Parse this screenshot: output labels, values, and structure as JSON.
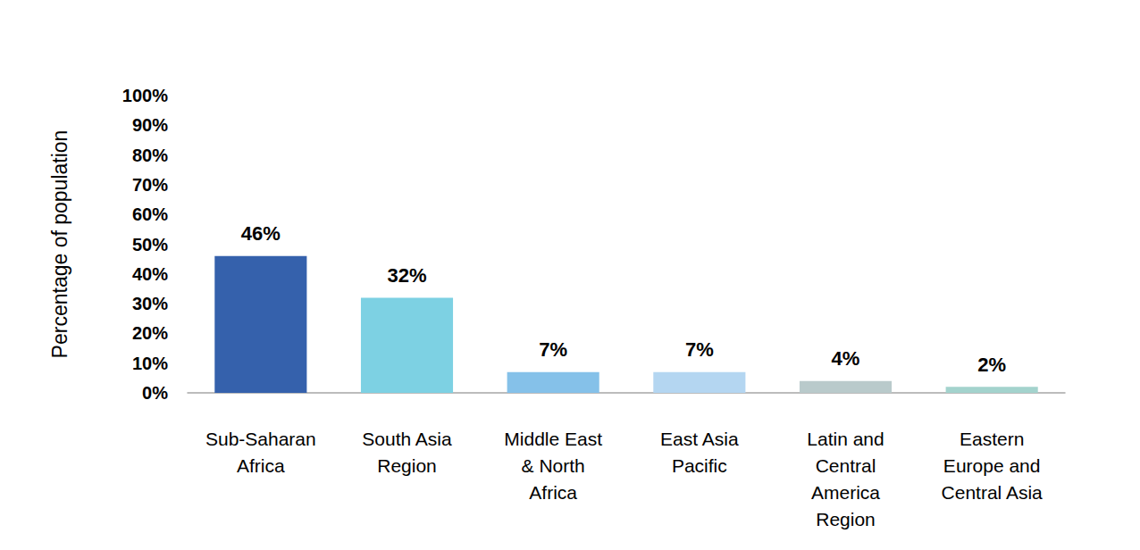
{
  "chart_data": {
    "type": "bar",
    "y_label": "Percentage of population",
    "categories": [
      "Sub-Saharan\nAfrica",
      "South Asia\nRegion",
      "Middle East\n& North\nAfrica",
      "East Asia\nPacific",
      "Latin and\nCentral\nAmerica\nRegion",
      "Eastern\nEurope and\nCentral Asia"
    ],
    "values": [
      46,
      32,
      7,
      7,
      4,
      2
    ],
    "value_labels": [
      "46%",
      "32%",
      "7%",
      "7%",
      "4%",
      "2%"
    ],
    "colors": [
      "#3561ac",
      "#7dd1e3",
      "#85c1e9",
      "#b4d6f1",
      "#b9cacb",
      "#a3d3cd"
    ],
    "ylim": [
      0,
      100
    ],
    "yticks": [
      {
        "value": 0,
        "label": "0%"
      },
      {
        "value": 10,
        "label": "10%"
      },
      {
        "value": 20,
        "label": "20%"
      },
      {
        "value": 30,
        "label": "30%"
      },
      {
        "value": 40,
        "label": "40%"
      },
      {
        "value": 50,
        "label": "50%"
      },
      {
        "value": 60,
        "label": "60%"
      },
      {
        "value": 70,
        "label": "70%"
      },
      {
        "value": 80,
        "label": "80%"
      },
      {
        "value": 90,
        "label": "90%"
      },
      {
        "value": 100,
        "label": "100%"
      }
    ],
    "grid": false,
    "data_labels": true
  }
}
